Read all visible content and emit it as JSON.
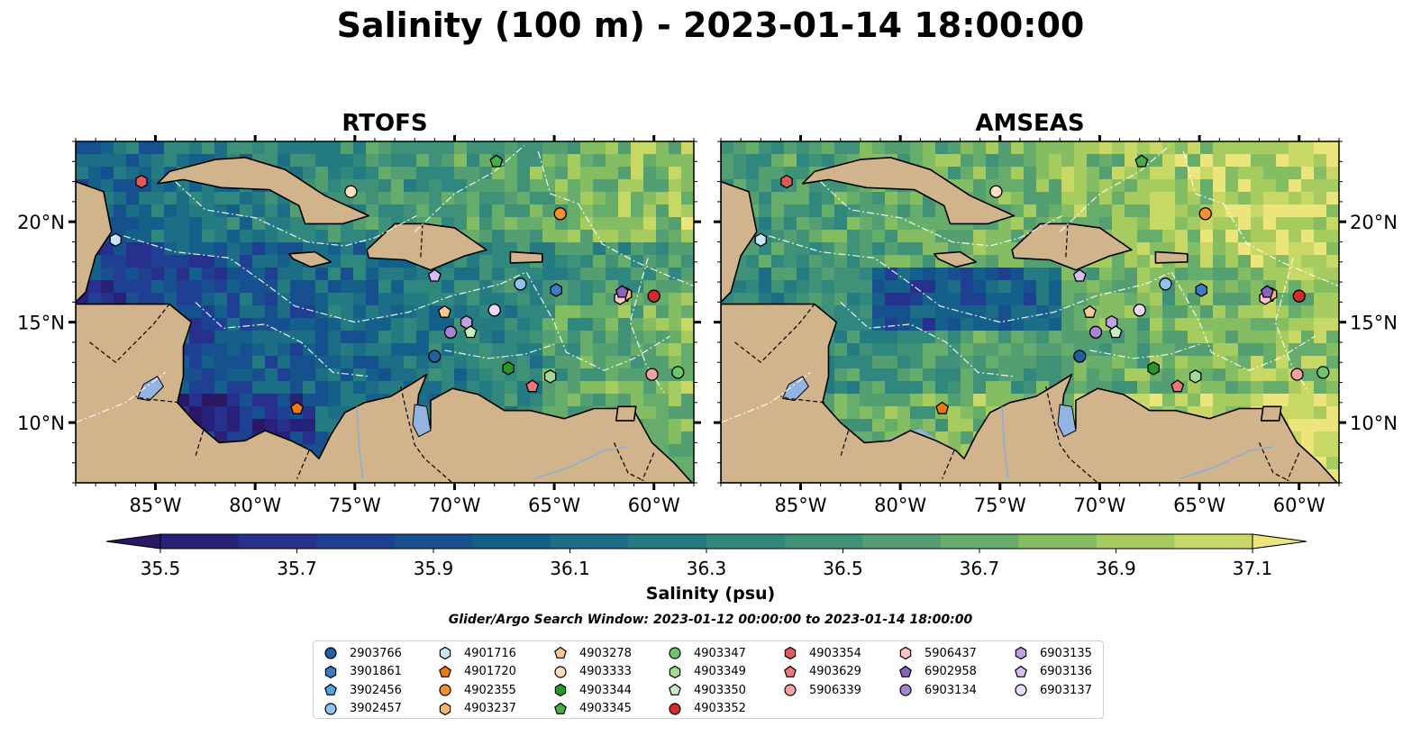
{
  "title": "Salinity (100 m) - 2023-01-14 18:00:00",
  "search_window": "Glider/Argo Search Window: 2023-01-12 00:00:00 to 2023-01-14 18:00:00",
  "colorbar": {
    "label": "Salinity (psu)",
    "ticks": [
      "35.5",
      "35.7",
      "35.9",
      "36.1",
      "36.3",
      "36.5",
      "36.7",
      "36.9",
      "37.1"
    ],
    "range": [
      35.4,
      37.2
    ],
    "extend": "both",
    "colormap": [
      "#2a1864",
      "#28217a",
      "#27318d",
      "#1f3f93",
      "#16508f",
      "#14608a",
      "#1b6e86",
      "#247b82",
      "#2f877e",
      "#3f9278",
      "#539f72",
      "#66ad6c",
      "#84bd62",
      "#a6cb5f",
      "#c8d864",
      "#ece57c"
    ]
  },
  "chart_data": [
    {
      "type": "map",
      "title": "RTOFS",
      "x_ticks": [
        "85°W",
        "80°W",
        "75°W",
        "70°W",
        "65°W",
        "60°W"
      ],
      "y_ticks": [
        "20°N",
        "15°N",
        "10°N"
      ],
      "lon_range": [
        -89,
        -58
      ],
      "lat_range": [
        7,
        24
      ],
      "y_tick_side": "left"
    },
    {
      "type": "map",
      "title": "AMSEAS",
      "x_ticks": [
        "85°W",
        "80°W",
        "75°W",
        "70°W",
        "65°W",
        "60°W"
      ],
      "y_ticks": [
        "20°N",
        "15°N",
        "10°N"
      ],
      "lon_range": [
        -89,
        -58
      ],
      "lat_range": [
        7,
        24
      ],
      "y_tick_side": "right"
    }
  ],
  "platforms": [
    {
      "id": "2903766",
      "marker": "circle",
      "color": "#1f5fa3",
      "lon": -71.0,
      "lat": 13.3
    },
    {
      "id": "3901861",
      "marker": "hexagon",
      "color": "#3b7dc4",
      "lon": -64.9,
      "lat": 16.6
    },
    {
      "id": "3902456",
      "marker": "pentagon",
      "color": "#4fa3e0",
      "lon": -61.5,
      "lat": 16.3
    },
    {
      "id": "3902457",
      "marker": "circle",
      "color": "#8fc3ee",
      "lon": -66.7,
      "lat": 16.9
    },
    {
      "id": "4901716",
      "marker": "hexagon",
      "color": "#c7e6fa",
      "lon": -87.0,
      "lat": 19.1
    },
    {
      "id": "4901720",
      "marker": "pentagon",
      "color": "#f07a10",
      "lon": -77.9,
      "lat": 10.7
    },
    {
      "id": "4902355",
      "marker": "circle",
      "color": "#f5902e",
      "lon": -64.7,
      "lat": 20.4
    },
    {
      "id": "4903237",
      "marker": "hexagon",
      "color": "#f8b36a",
      "lon": -61.4,
      "lat": 16.4
    },
    {
      "id": "4903278",
      "marker": "pentagon",
      "color": "#fac896",
      "lon": -70.5,
      "lat": 15.5
    },
    {
      "id": "4903333",
      "marker": "circle",
      "color": "#fde0c0",
      "lon": -75.2,
      "lat": 21.5
    },
    {
      "id": "4903344",
      "marker": "hexagon",
      "color": "#249a24",
      "lon": -67.3,
      "lat": 12.7
    },
    {
      "id": "4903345",
      "marker": "pentagon",
      "color": "#44b044",
      "lon": -67.9,
      "lat": 23.0
    },
    {
      "id": "4903347",
      "marker": "circle",
      "color": "#6cc46c",
      "lon": -58.8,
      "lat": 12.5
    },
    {
      "id": "4903349",
      "marker": "hexagon",
      "color": "#a0dc96",
      "lon": -65.2,
      "lat": 12.3
    },
    {
      "id": "4903350",
      "marker": "pentagon",
      "color": "#c8f0c0",
      "lon": -69.2,
      "lat": 14.5
    },
    {
      "id": "4903352",
      "marker": "circle",
      "color": "#d42a2a",
      "lon": -60.0,
      "lat": 16.3
    },
    {
      "id": "4903354",
      "marker": "hexagon",
      "color": "#e05a5a",
      "lon": -85.7,
      "lat": 22.0
    },
    {
      "id": "4903629",
      "marker": "pentagon",
      "color": "#ec7878",
      "lon": -66.1,
      "lat": 11.8
    },
    {
      "id": "5906339",
      "marker": "circle",
      "color": "#f6a0a0",
      "lon": -60.1,
      "lat": 12.4
    },
    {
      "id": "5906437",
      "marker": "hexagon",
      "color": "#fac4c4",
      "lon": -61.7,
      "lat": 16.2
    },
    {
      "id": "6902958",
      "marker": "pentagon",
      "color": "#8a62c0",
      "lon": -61.6,
      "lat": 16.5
    },
    {
      "id": "6903134",
      "marker": "circle",
      "color": "#a784d4",
      "lon": -70.2,
      "lat": 14.5
    },
    {
      "id": "6903135",
      "marker": "hexagon",
      "color": "#c3a0e2",
      "lon": -69.4,
      "lat": 15.0
    },
    {
      "id": "6903136",
      "marker": "pentagon",
      "color": "#d9bcf0",
      "lon": -71.0,
      "lat": 17.3
    },
    {
      "id": "6903137",
      "marker": "circle",
      "color": "#ecd8f8",
      "lon": -68.0,
      "lat": 15.6
    }
  ]
}
